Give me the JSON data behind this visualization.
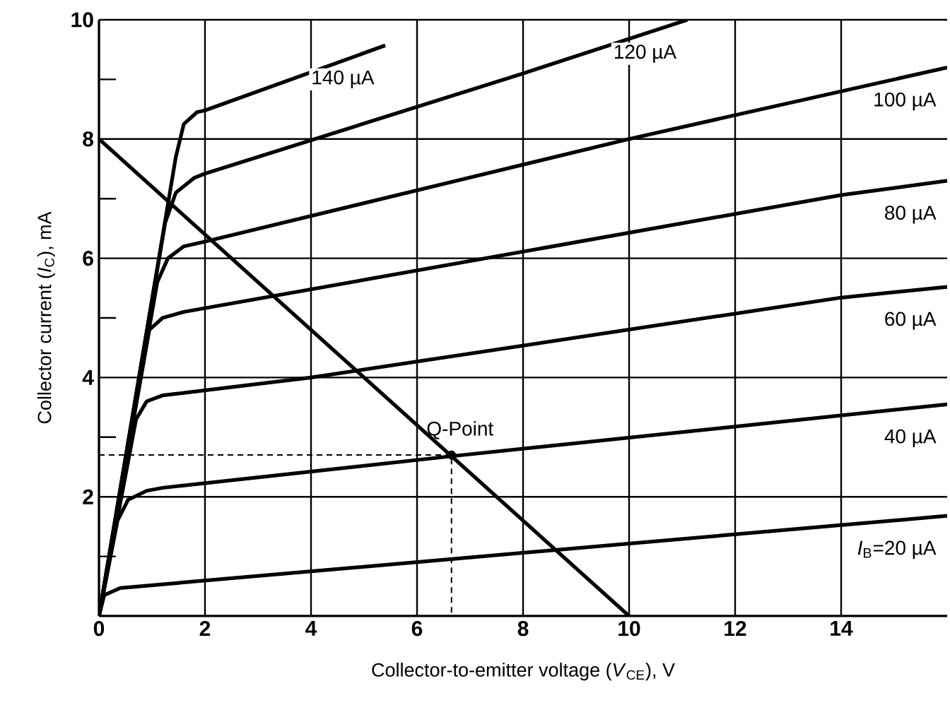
{
  "chart_data": {
    "type": "line",
    "xlabel": "Collector-to-emitter voltage (*V*$_{CE}$), V",
    "ylabel": "Collector current (*I*$_{C}$), mA",
    "xlim": [
      0,
      16
    ],
    "ylim": [
      0,
      10
    ],
    "xticks": [
      0,
      2,
      4,
      6,
      8,
      10,
      12,
      14
    ],
    "yticks": [
      {
        "value": 1,
        "label": null
      },
      2,
      {
        "value": 3,
        "label": null
      },
      4,
      {
        "value": 5,
        "label": null
      },
      6,
      {
        "value": 7,
        "label": null
      },
      8,
      {
        "value": 9,
        "label": null
      },
      10
    ],
    "grid": true,
    "marker": "none",
    "line_style": "solid",
    "series": [
      {
        "name": "*I*$_{B}$=20 µA",
        "color": "#000000",
        "x": [
          0,
          0.1,
          0.4,
          16
        ],
        "values": [
          0,
          0.35,
          0.47,
          1.68
        ]
      },
      {
        "name": "40 µA",
        "color": "#000000",
        "x": [
          0,
          0.35,
          0.55,
          0.9,
          1.2,
          6.65,
          16
        ],
        "values": [
          0,
          1.6,
          1.95,
          2.1,
          2.15,
          2.68,
          3.55
        ]
      },
      {
        "name": "60 µA",
        "color": "#000000",
        "x": [
          0,
          0.7,
          0.9,
          1.2,
          4,
          14,
          16
        ],
        "values": [
          0,
          3.3,
          3.6,
          3.7,
          4.0,
          5.34,
          5.52
        ]
      },
      {
        "name": "80 µA",
        "color": "#000000",
        "x": [
          0,
          0.95,
          1.2,
          1.6,
          14,
          16
        ],
        "values": [
          0,
          4.8,
          5.0,
          5.1,
          7.06,
          7.3
        ]
      },
      {
        "name": "100 µA",
        "color": "#000000",
        "x": [
          0,
          1.1,
          1.3,
          1.6,
          2,
          10,
          16
        ],
        "values": [
          0,
          5.6,
          6.0,
          6.2,
          6.28,
          8.0,
          9.2
        ]
      },
      {
        "name": "120 µA",
        "color": "#000000",
        "x": [
          0,
          1.25,
          1.45,
          1.8,
          2,
          8,
          11.1
        ],
        "values": [
          0,
          6.6,
          7.1,
          7.35,
          7.42,
          9.1,
          10
        ]
      },
      {
        "name": "140 µA",
        "color": "#000000",
        "x": [
          0,
          1.45,
          1.6,
          1.85,
          2,
          5.4
        ],
        "values": [
          0,
          7.7,
          8.25,
          8.45,
          8.48,
          9.57
        ]
      },
      {
        "color": "#000000",
        "x": [
          0,
          10
        ],
        "values": [
          8,
          0
        ]
      },
      {
        "color": "#000000",
        "line_style": "dashed",
        "x": [
          0,
          6.65,
          6.65
        ],
        "values": [
          2.7,
          2.7,
          0
        ]
      },
      {
        "type": "scatter",
        "marker": "circle",
        "color": "#000000",
        "x": [
          6.65
        ],
        "values": [
          2.7
        ]
      }
    ],
    "annotations": [
      {
        "text": "Q-Point",
        "x": 6.65,
        "y": 2.7
      }
    ]
  }
}
